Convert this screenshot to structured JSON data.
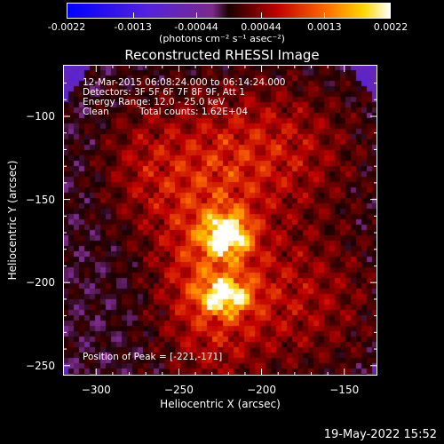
{
  "chart_data": {
    "type": "heatmap",
    "title": "Reconstructed RHESSI Image",
    "xlabel": "Heliocentric X (arcsec)",
    "ylabel": "Heliocentric Y (arcsec)",
    "xlim": [
      -320,
      -130
    ],
    "ylim": [
      -256,
      -69
    ],
    "x_ticks": [
      "-300",
      "-250",
      "-200",
      "-150"
    ],
    "x_tick_values": [
      -300,
      -250,
      -200,
      -150
    ],
    "y_ticks": [
      "-100",
      "-150",
      "-200",
      "-250"
    ],
    "y_tick_values": [
      -100,
      -150,
      -200,
      -250
    ],
    "colorbar": {
      "ticks": [
        "-0.0022",
        "-0.0013",
        "-0.00044",
        "0.00044",
        "0.0013",
        "0.0022"
      ],
      "tick_values": [
        -0.0022,
        -0.0013,
        -0.00044,
        0.00044,
        0.0013,
        0.0022
      ],
      "units": "(photons cm⁻² s⁻¹ asec⁻²)",
      "range": [
        -0.0022,
        0.0022
      ]
    },
    "peak": [
      -221,
      -171
    ],
    "sources": [
      {
        "x": -221,
        "y": -171,
        "intensity": 1.0
      },
      {
        "x": -222,
        "y": -208,
        "intensity": 0.78
      }
    ]
  },
  "annotations": {
    "time_range": "12-Mar-2015 06:08:24.000 to 06:14:24.000",
    "detectors": "Detectors: 3F 5F 6F 7F 8F 9F, Att 1",
    "energy": "Energy Range: 12.0 - 25.0 keV",
    "method": "Clean",
    "counts": "Total counts: 1.62E+04",
    "peak_label": "Position of Peak = [-221,-171]"
  },
  "footer": {
    "date": "19-May-2022 15:52"
  }
}
